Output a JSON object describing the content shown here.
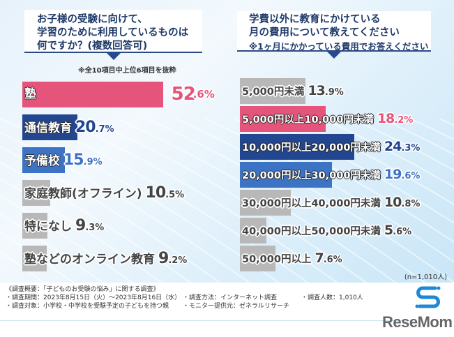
{
  "left_panel": {
    "question_lines": [
      "お子様の受験に向けて、",
      "学習のために利用しているものは",
      "何ですか？(複数回答可)"
    ],
    "note": "※全10項目中上位6項目を抜粋"
  },
  "right_panel": {
    "question_lines": [
      "学費以外に教育にかけている",
      "月の費用について教えてください"
    ],
    "question_sub": "※1ヶ月にかかっている費用でお答えください",
    "sample_note": "(n=1,010人)"
  },
  "chart_data": [
    {
      "type": "bar",
      "orientation": "horizontal",
      "title": "お子様の受験に向けて、学習のために利用しているものは何ですか？(複数回答可)",
      "unit": "%",
      "categories": [
        "塾",
        "通信教育",
        "予備校",
        "家庭教師(オフライン)",
        "特になし",
        "塾などのオンライン教育"
      ],
      "values": [
        52.6,
        20.7,
        15.9,
        10.5,
        9.3,
        9.2
      ],
      "value_labels": [
        [
          "52",
          ".6%"
        ],
        [
          "20",
          ".7%"
        ],
        [
          "15",
          ".9%"
        ],
        [
          "10",
          ".5%"
        ],
        [
          "9",
          ".3%"
        ],
        [
          "9",
          ".2%"
        ]
      ],
      "colors": [
        "#e5547b",
        "#22468f",
        "#3d73c4",
        "#b8b8b8",
        "#b8b8b8",
        "#b8b8b8"
      ],
      "xlim": [
        0,
        60
      ]
    },
    {
      "type": "bar",
      "orientation": "horizontal",
      "title": "学費以外に教育にかけている月の費用について教えてください",
      "unit": "%",
      "categories": [
        "5,000円未満",
        "5,000円以上10,000円未満",
        "10,000円以上20,000円未満",
        "20,000円以上30,000円未満",
        "30,000円以上40,000円未満",
        "40,000円以上50,000円未満",
        "50,000円以上"
      ],
      "values": [
        13.9,
        18.2,
        24.3,
        19.6,
        10.8,
        5.6,
        7.6
      ],
      "value_labels": [
        [
          "13",
          ".9%"
        ],
        [
          "18",
          ".2%"
        ],
        [
          "24",
          ".3%"
        ],
        [
          "19",
          ".6%"
        ],
        [
          "10",
          ".8%"
        ],
        [
          "5",
          ".6%"
        ],
        [
          "7",
          ".6%"
        ]
      ],
      "colors": [
        "#b8b8b8",
        "#e5547b",
        "#22468f",
        "#3d73c4",
        "#b8b8b8",
        "#b8b8b8",
        "#b8b8b8"
      ],
      "xlim": [
        0,
        60
      ]
    }
  ],
  "footer": {
    "survey_title": "《調査概要：「子どものお受験の悩み」に関する調査》",
    "period": "・調査期間：2023年8月15日（火）～2023年8月16日（水）",
    "target": "・調査対象：小学校・中学校を受験予定の子どもを持つ親",
    "method": "・調査方法：インターネット調査",
    "provider": "・モニター提供元：ゼネラルリサーチ",
    "respondents": "・調査人数：1,010人"
  },
  "branding": {
    "logo_name": "ReseMom",
    "logo_icon": "s-logo-icon"
  }
}
